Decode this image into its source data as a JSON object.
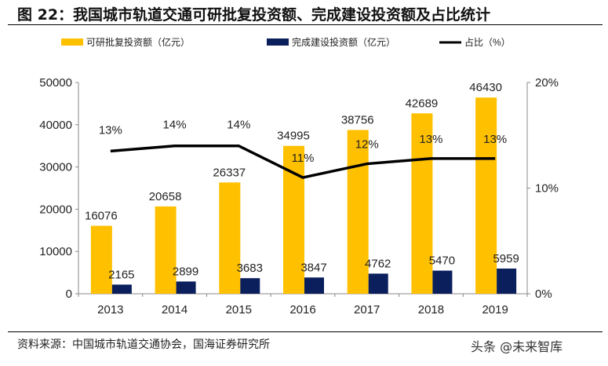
{
  "title": "图 22：我国城市轨道交通可研批复投资额、完成建设投资额及占比统计",
  "source": "资料来源：中国城市轨道交通协会，国海证券研究所",
  "watermark": "头条 @未来智库",
  "chart_data": {
    "type": "bar+line",
    "categories": [
      "2013",
      "2014",
      "2015",
      "2016",
      "2017",
      "2018",
      "2019"
    ],
    "series": [
      {
        "name": "可研批复投资额（亿元）",
        "type": "bar",
        "axis": "left",
        "color": "#FFC000",
        "values": [
          16076,
          20658,
          26337,
          34995,
          38756,
          42689,
          46430
        ]
      },
      {
        "name": "完成建设投资额（亿元）",
        "type": "bar",
        "axis": "right-bar",
        "color": "#0A1F5C",
        "values": [
          2165,
          2899,
          3683,
          3847,
          4762,
          5470,
          5959
        ]
      },
      {
        "name": "占比（%）",
        "type": "line",
        "axis": "right",
        "color": "#000000",
        "values": [
          13.5,
          14.0,
          14.0,
          11.0,
          12.3,
          12.8,
          12.8
        ],
        "labels": [
          "13%",
          "14%",
          "14%",
          "11%",
          "12%",
          "13%",
          "13%"
        ]
      }
    ],
    "left_axis": {
      "ylim": [
        0,
        50000
      ],
      "ticks": [
        "0",
        "10000",
        "20000",
        "30000",
        "40000",
        "50000"
      ]
    },
    "right_axis": {
      "ylim": [
        0,
        20
      ],
      "ticks": [
        "0%",
        "10%",
        "20%"
      ]
    },
    "legend": "top",
    "grid": false
  }
}
